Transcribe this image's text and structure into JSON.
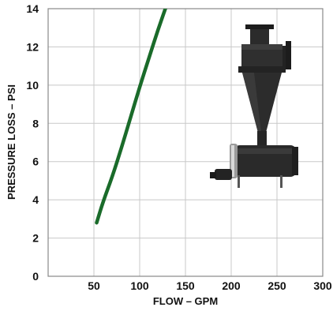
{
  "chart_data": {
    "type": "line",
    "title": "",
    "xlabel": "FLOW – GPM",
    "ylabel": "PRESSURE LOSS – PSI",
    "xlim": [
      0,
      300
    ],
    "ylim": [
      0,
      14
    ],
    "x_ticks": [
      "50",
      "100",
      "150",
      "200",
      "250",
      "300"
    ],
    "y_ticks": [
      "0",
      "2",
      "4",
      "6",
      "8",
      "10",
      "12",
      "14"
    ],
    "grid": true,
    "series": [
      {
        "color": "#1a6b2a",
        "x": [
          53,
          60,
          70,
          80,
          90,
          100,
          110,
          120,
          131
        ],
        "y": [
          2.8,
          3.9,
          5.2,
          6.7,
          8.3,
          9.9,
          11.4,
          12.9,
          14.4
        ]
      }
    ]
  },
  "figure": {
    "image_icon": "hydrocyclone-separator-icon",
    "colors": {
      "grid": "#c8c8c8",
      "frame": "#888888",
      "text": "#111111",
      "separator_body": "#2b2b2b"
    }
  }
}
